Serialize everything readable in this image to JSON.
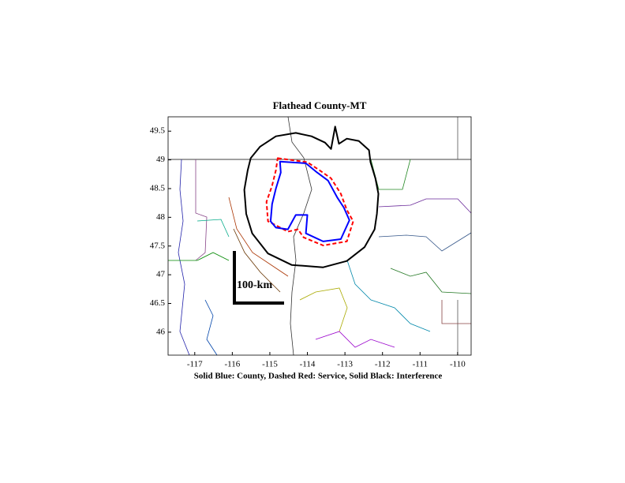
{
  "chart_data": {
    "type": "map",
    "title": "Flathead County-MT",
    "xlabel": "Solid Blue: County, Dashed Red: Service, Solid Black: Interference",
    "scale_label": "100-km",
    "xlim": [
      -117.71,
      -109.64
    ],
    "ylim": [
      45.6,
      49.75
    ],
    "xticks": [
      -117,
      -116,
      -115,
      -114,
      -113,
      -112,
      -111,
      -110
    ],
    "yticks": [
      46,
      46.5,
      47,
      47.5,
      48,
      48.5,
      49,
      49.5
    ],
    "series": [
      {
        "color": "#000000",
        "style": "solid",
        "width": 2,
        "x": [
          -113.26,
          -113.37,
          -113.53,
          -113.89,
          -114.31,
          -114.84,
          -115.26,
          -115.51,
          -115.59,
          -115.68,
          -115.63,
          -115.47,
          -115.05,
          -114.42,
          -113.58,
          -112.95,
          -112.48,
          -112.21,
          -112.15,
          -112.11,
          -112.19,
          -112.32,
          -112.36,
          -112.63,
          -112.95,
          -113.16
        ],
        "values": [
          49.58,
          49.19,
          49.3,
          49.41,
          49.47,
          49.41,
          49.23,
          49.03,
          48.82,
          48.48,
          48.06,
          47.72,
          47.37,
          47.17,
          47.13,
          47.24,
          47.48,
          47.79,
          48.06,
          48.41,
          48.68,
          48.96,
          49.17,
          49.33,
          49.37,
          49.28
        ]
      },
      {
        "color": "#ff0000",
        "style": "dashed",
        "width": 2,
        "x": [
          -114.79,
          -114.0,
          -113.68,
          -113.37,
          -113.11,
          -112.95,
          -112.78,
          -112.95,
          -113.58,
          -114.1,
          -114.25,
          -114.52,
          -114.84,
          -115.05,
          -115.09,
          -114.94,
          -114.84
        ],
        "values": [
          49.03,
          48.96,
          48.82,
          48.68,
          48.41,
          48.13,
          47.93,
          47.58,
          47.51,
          47.65,
          47.79,
          47.75,
          47.86,
          47.93,
          48.27,
          48.55,
          48.82
        ]
      },
      {
        "color": "#0000ff",
        "style": "solid",
        "width": 2,
        "x": [
          -114.73,
          -114.04,
          -113.74,
          -113.45,
          -113.2,
          -113.03,
          -112.88,
          -113.11,
          -113.58,
          -114.04,
          -114.0,
          -114.31,
          -114.52,
          -114.84,
          -114.98,
          -114.94,
          -114.84,
          -114.71
        ],
        "values": [
          48.97,
          48.94,
          48.78,
          48.64,
          48.34,
          48.17,
          47.95,
          47.62,
          47.58,
          47.72,
          48.04,
          48.04,
          47.79,
          47.82,
          47.93,
          48.23,
          48.5,
          48.78
        ]
      }
    ]
  }
}
